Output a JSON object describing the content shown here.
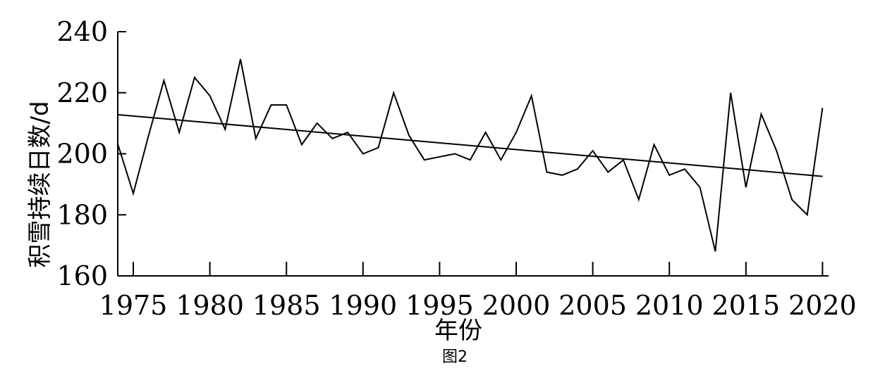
{
  "chart_data": {
    "type": "line",
    "title": "",
    "xlabel": "年份",
    "ylabel": "积雪持续日数/d",
    "caption": "图2",
    "xlim": [
      1974,
      2020
    ],
    "ylim": [
      160,
      240
    ],
    "x_ticks": [
      1975,
      1980,
      1985,
      1990,
      1995,
      2000,
      2005,
      2010,
      2015,
      2020
    ],
    "y_ticks": [
      160,
      180,
      200,
      220,
      240
    ],
    "grid": false,
    "legend": "none",
    "series": [
      {
        "x": [
          1974,
          1975,
          1976,
          1977,
          1978,
          1979,
          1980,
          1981,
          1982,
          1983,
          1984,
          1985,
          1986,
          1987,
          1988,
          1989,
          1990,
          1991,
          1992,
          1993,
          1994,
          1995,
          1996,
          1997,
          1998,
          1999,
          2000,
          2001,
          2002,
          2003,
          2004,
          2005,
          2006,
          2007,
          2008,
          2009,
          2010,
          2011,
          2012,
          2013,
          2014,
          2015,
          2016,
          2017,
          2018,
          2019,
          2020
        ],
        "values": [
          203,
          187,
          206,
          224,
          207,
          225,
          219,
          208,
          231,
          205,
          216,
          216,
          203,
          210,
          205,
          207,
          200,
          202,
          220,
          206,
          198,
          199,
          200,
          198,
          207,
          198,
          207,
          219,
          194,
          193,
          195,
          201,
          194,
          198,
          185,
          203,
          193,
          195,
          189,
          168,
          220,
          189,
          213,
          201,
          185,
          180,
          215
        ]
      }
    ],
    "trendline": {
      "x": [
        1974,
        2020
      ],
      "values": [
        212.8,
        192.6
      ]
    }
  }
}
